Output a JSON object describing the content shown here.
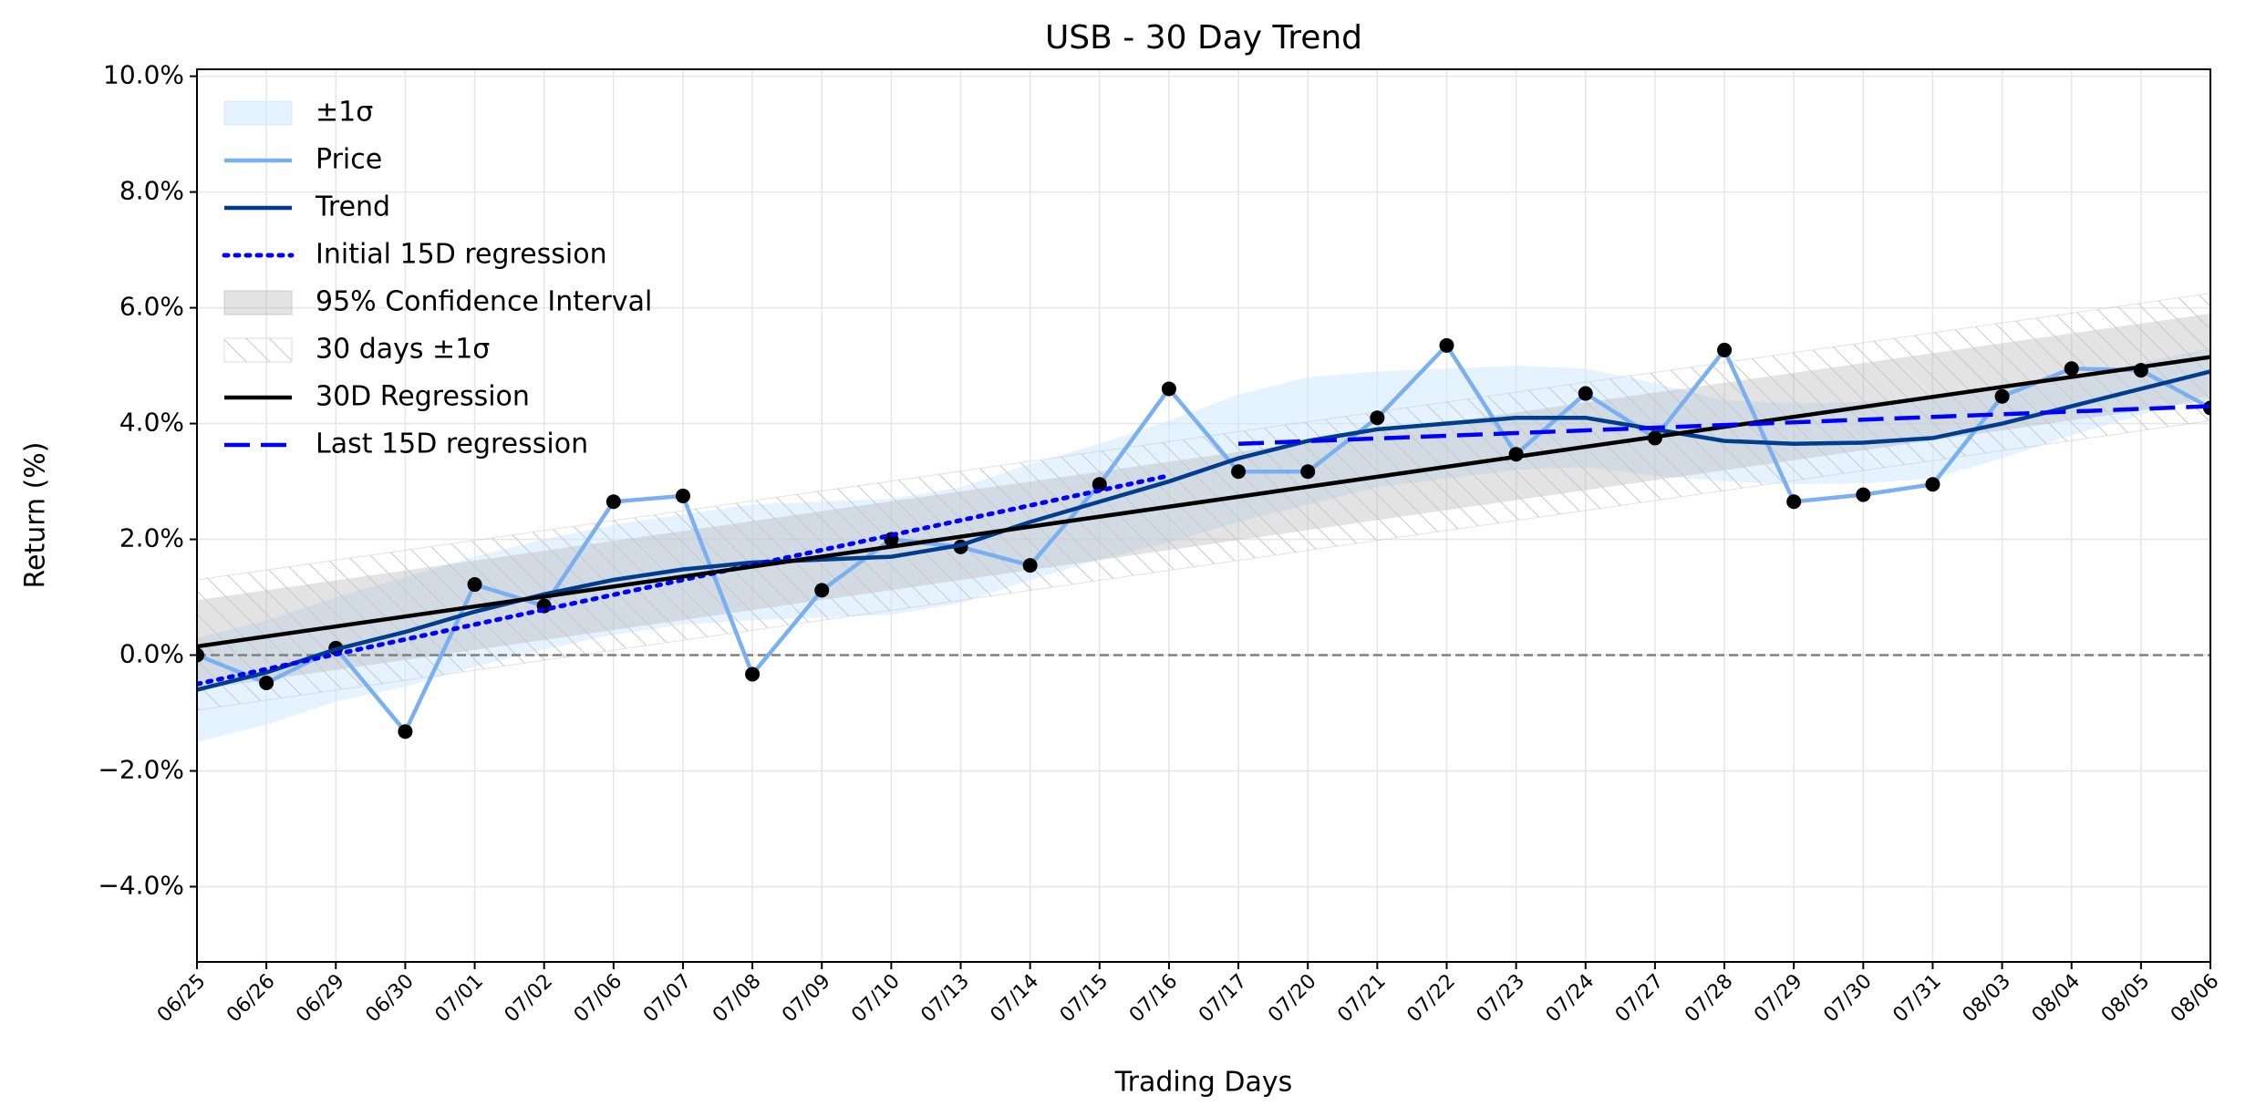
{
  "chart_data": {
    "type": "line",
    "title": "USB - 30 Day Trend",
    "xlabel": "Trading Days",
    "ylabel": "Return (%)",
    "categories": [
      "06/25",
      "06/26",
      "06/29",
      "06/30",
      "07/01",
      "07/02",
      "07/06",
      "07/07",
      "07/08",
      "07/09",
      "07/10",
      "07/13",
      "07/14",
      "07/15",
      "07/16",
      "07/17",
      "07/20",
      "07/21",
      "07/22",
      "07/23",
      "07/24",
      "07/27",
      "07/28",
      "07/29",
      "07/30",
      "07/31",
      "08/03",
      "08/04",
      "08/05",
      "08/06"
    ],
    "ylim": [
      -5.3,
      10.12
    ],
    "yticks": [
      {
        "value": -4,
        "label": "−4.0%"
      },
      {
        "value": -2,
        "label": "−2.0%"
      },
      {
        "value": 0,
        "label": "0.0%"
      },
      {
        "value": 2,
        "label": "2.0%"
      },
      {
        "value": 4,
        "label": "4.0%"
      },
      {
        "value": 6,
        "label": "6.0%"
      },
      {
        "value": 8,
        "label": "8.0%"
      },
      {
        "value": 10,
        "label": "10.0%"
      }
    ],
    "grid": true,
    "legend": "upper left",
    "reference_line": {
      "value": 0,
      "color": "#808080"
    },
    "series": [
      {
        "name": "±1σ",
        "kind": "band",
        "color": "#cce5ff",
        "upper": [
          0.3,
          0.6,
          1.0,
          1.35,
          1.7,
          2.0,
          2.25,
          2.43,
          2.6,
          2.65,
          2.7,
          2.9,
          3.3,
          3.65,
          4.05,
          4.5,
          4.8,
          4.9,
          4.95,
          5.0,
          4.95,
          4.7,
          4.4,
          4.35,
          4.37,
          4.45,
          4.6,
          4.8,
          5.05,
          5.3
        ],
        "lower": [
          -1.5,
          -1.2,
          -0.8,
          -0.55,
          -0.2,
          0.1,
          0.35,
          0.53,
          0.6,
          0.65,
          0.7,
          0.9,
          1.3,
          1.65,
          1.95,
          2.3,
          2.6,
          2.9,
          3.05,
          3.2,
          3.25,
          3.1,
          3.0,
          2.95,
          2.97,
          3.05,
          3.4,
          3.8,
          4.15,
          4.5
        ]
      },
      {
        "name": "Price",
        "kind": "line",
        "color": "#7ab0f0",
        "marker_color": "#000000",
        "values": [
          0.0,
          -0.48,
          0.12,
          -1.32,
          1.22,
          0.85,
          2.65,
          2.75,
          -0.33,
          1.12,
          2.0,
          1.87,
          1.55,
          2.95,
          4.6,
          3.17,
          3.17,
          4.1,
          5.35,
          3.47,
          4.52,
          3.75,
          5.27,
          2.65,
          2.77,
          2.95,
          4.47,
          4.95,
          4.92,
          4.27
        ]
      },
      {
        "name": "Trend",
        "kind": "line",
        "color": "#003d8f",
        "values": [
          -0.6,
          -0.3,
          0.1,
          0.4,
          0.75,
          1.05,
          1.3,
          1.48,
          1.6,
          1.65,
          1.7,
          1.9,
          2.3,
          2.65,
          3.0,
          3.4,
          3.7,
          3.9,
          4.0,
          4.1,
          4.1,
          3.9,
          3.7,
          3.65,
          3.67,
          3.75,
          4.0,
          4.3,
          4.6,
          4.9
        ]
      },
      {
        "name": "Initial 15D regression",
        "kind": "line",
        "style": "dotted",
        "color": "#0000ff",
        "x": [
          "06/25",
          "07/16"
        ],
        "values": [
          -0.5,
          3.1
        ]
      },
      {
        "name": "95% Confidence Interval",
        "kind": "band",
        "color": "#b0b0b0",
        "x": [
          "06/25",
          "08/06"
        ],
        "lower": [
          -0.6,
          4.4
        ],
        "upper": [
          0.95,
          5.9
        ]
      },
      {
        "name": "30 days ±1σ",
        "kind": "band",
        "style": "hatch",
        "color": "#c8c8c8",
        "x": [
          "06/25",
          "08/06"
        ],
        "lower": [
          -0.95,
          4.05
        ],
        "upper": [
          1.3,
          6.25
        ]
      },
      {
        "name": "30D Regression",
        "kind": "line",
        "color": "#000000",
        "x": [
          "06/25",
          "08/06"
        ],
        "values": [
          0.15,
          5.15
        ]
      },
      {
        "name": "Last 15D regression",
        "kind": "line",
        "style": "dashed",
        "color": "#0000ff",
        "x": [
          "07/17",
          "08/06"
        ],
        "values": [
          3.65,
          4.3
        ]
      }
    ]
  }
}
